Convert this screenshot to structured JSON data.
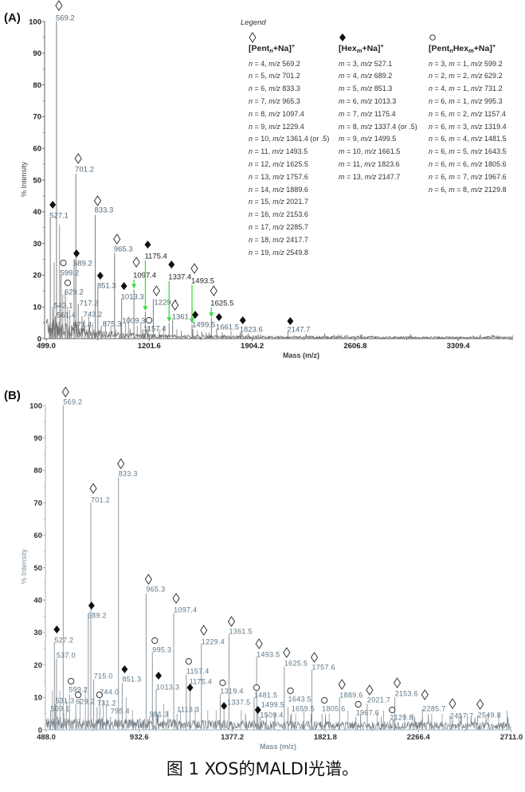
{
  "caption": "图 1 XOS的MALDI光谱。",
  "colors": {
    "arrow": "#3ddf3d",
    "filled_marker": "#111111",
    "open_marker_stroke": "#333333"
  },
  "legend": {
    "title": "Legend",
    "columns": [
      {
        "series": "pent",
        "symbol": "open-diamond",
        "header": [
          "[Pent",
          {
            "sub": "n"
          },
          "+Na]",
          {
            "sup": "+"
          }
        ],
        "rows": [
          "n = 4, m/z 569.2",
          "n = 5, m/z 701.2",
          "n = 6, m/z 833.3",
          "n = 7, m/z 965.3",
          "n = 8, m/z 1097.4",
          "n = 9, m/z 1229.4",
          "n = 10, m/z 1361.4 (or .5)",
          "n = 11, m/z 1493.5",
          "n = 12, m/z 1625.5",
          "n = 13, m/z 1757.6",
          "n = 14, m/z 1889.6",
          "n = 15, m/z 2021.7",
          "n = 16, m/z 2153.6",
          "n = 17, m/z 2285.7",
          "n = 18, m/z 2417.7",
          "n = 19, m/z 2549.8"
        ]
      },
      {
        "series": "hex",
        "symbol": "filled-diamond",
        "header": [
          "[Hex",
          {
            "sub": "m"
          },
          "+Na]",
          {
            "sup": "+"
          }
        ],
        "rows": [
          "m = 3, m/z 527.1",
          "m = 4, m/z 689.2",
          "m = 5, m/z 851.3",
          "m = 6, m/z 1013.3",
          "m = 7, m/z 1175.4",
          "m = 8, m/z 1337.4 (or .5)",
          "m = 9, m/z 1499.5",
          "m = 10, m/z 1661.5",
          "m = 11, m/z 1823.6",
          "m = 13, m/z 2147.7"
        ]
      },
      {
        "series": "penthex",
        "symbol": "open-circle",
        "header": [
          "[Pent",
          {
            "sub": "n"
          },
          "Hex",
          {
            "sub": "m"
          },
          "+Na]",
          {
            "sup": "+"
          }
        ],
        "rows": [
          "n = 3, m = 1, m/z 599.2",
          "n = 2, m = 2, m/z 629.2",
          "n = 4, m = 1, m/z 731.2",
          "n = 6, m = 1, m/z 995.3",
          "n = 6, m = 2, m/z 1157.4",
          "n = 6, m = 3, m/z 1319.4",
          "n = 6, m = 4, m/z 1481.5",
          "n = 6, m = 5, m/z 1643.5",
          "n = 6, m = 6, m/z 1805.6",
          "n = 6, m = 7, m/z 1967.6",
          "n = 6, m = 8, m/z 2129.8"
        ]
      }
    ]
  },
  "chart_data": [
    {
      "panel_label": "(A)",
      "type": "bar",
      "subtype": "mass-spectrum-sticks",
      "title": "",
      "xlabel": "Mass (m/z)",
      "ylabel": "% Intensity",
      "xlim": [
        499.0,
        3678.0
      ],
      "ylim": [
        0,
        100
      ],
      "xticks": [
        499.0,
        1201.6,
        1904.2,
        2606.8,
        3309.4
      ],
      "yticks": [
        0,
        10,
        20,
        30,
        40,
        50,
        60,
        70,
        80,
        90,
        100
      ],
      "grid": false,
      "legend_position": "top-right",
      "series_keys": {
        "pent": "[Pentn+Na]+",
        "hex": "[Hexm+Na]+",
        "penthex": "[PentnHexm+Na]+",
        "other": "unassigned"
      },
      "peaks": [
        {
          "label": "569.2",
          "mz": 569.2,
          "intensity": 100,
          "series": "pent"
        },
        {
          "label": "701.2",
          "mz": 701.2,
          "intensity": 52,
          "series": "pent"
        },
        {
          "label": "833.3",
          "mz": 833.3,
          "intensity": 39,
          "series": "pent"
        },
        {
          "label": "965.3",
          "mz": 965.3,
          "intensity": 27,
          "series": "pent"
        },
        {
          "label": "1097.4",
          "mz": 1097.4,
          "intensity": 15.5,
          "series": "pent",
          "arrow": true
        },
        {
          "label": "1229.4",
          "mz": 1229.4,
          "intensity": 12.5,
          "series": "pent"
        },
        {
          "label": "1361.4",
          "mz": 1361.4,
          "intensity": 6,
          "series": "pent"
        },
        {
          "label": "1493.5",
          "mz": 1493.5,
          "intensity": 4.5,
          "series": "pent",
          "arrow": true
        },
        {
          "label": "1625.5",
          "mz": 1625.5,
          "intensity": 6.5,
          "series": "pent",
          "arrow": true
        },
        {
          "label": "527.1",
          "mz": 527.1,
          "intensity": 38,
          "series": "hex"
        },
        {
          "label": "689.2",
          "mz": 689.2,
          "intensity": 25,
          "series": "hex"
        },
        {
          "label": "851.3",
          "mz": 851.3,
          "intensity": 16,
          "series": "hex"
        },
        {
          "label": "1013.3",
          "mz": 1013.3,
          "intensity": 12.5,
          "series": "hex"
        },
        {
          "label": "1175.4",
          "mz": 1175.4,
          "intensity": 8.5,
          "series": "hex",
          "arrow": true
        },
        {
          "label": "1337.4",
          "mz": 1337.4,
          "intensity": 5,
          "series": "hex",
          "arrow": true
        },
        {
          "label": "1499.5",
          "mz": 1499.5,
          "intensity": 3,
          "series": "hex"
        },
        {
          "label": "1661.5",
          "mz": 1661.5,
          "intensity": 3,
          "series": "hex"
        },
        {
          "label": "1823.6",
          "mz": 1823.6,
          "intensity": 2,
          "series": "hex"
        },
        {
          "label": "2147.7",
          "mz": 2147.7,
          "intensity": 2,
          "series": "hex"
        },
        {
          "label": "599.2",
          "mz": 599.2,
          "intensity": 20,
          "series": "penthex"
        },
        {
          "label": "629.2",
          "mz": 629.2,
          "intensity": 15,
          "series": "penthex"
        },
        {
          "label": "1157.4",
          "mz": 1157.4,
          "intensity": 3,
          "series": "penthex"
        },
        {
          "label": "543.1",
          "mz": 543.1,
          "intensity": 10,
          "series": "other"
        },
        {
          "label": "561.4",
          "mz": 561.4,
          "intensity": 7,
          "series": "other"
        },
        {
          "label": "671.4",
          "mz": 671.4,
          "intensity": 4,
          "series": "other"
        },
        {
          "label": "717.2",
          "mz": 717.2,
          "intensity": 11,
          "series": "other"
        },
        {
          "label": "743.2",
          "mz": 743.2,
          "intensity": 7,
          "series": "other"
        },
        {
          "label": "875.3",
          "mz": 875.3,
          "intensity": 4,
          "series": "other"
        },
        {
          "label": "1009.3",
          "mz": 1009.3,
          "intensity": 5,
          "series": "other"
        }
      ],
      "unlabeled_peaks": [
        [
          553,
          24
        ],
        [
          590,
          36
        ],
        [
          612,
          14
        ],
        [
          645,
          10
        ],
        [
          660,
          9
        ],
        [
          760,
          6
        ],
        [
          790,
          7
        ],
        [
          815,
          5
        ],
        [
          905,
          5
        ],
        [
          940,
          4
        ],
        [
          1040,
          5
        ],
        [
          1060,
          7
        ],
        [
          1120,
          4
        ],
        [
          1145,
          5
        ],
        [
          1195,
          4
        ],
        [
          1270,
          3
        ],
        [
          1300,
          4
        ],
        [
          1390,
          3
        ],
        [
          1420,
          2.5
        ],
        [
          1530,
          2.5
        ],
        [
          1590,
          2
        ],
        [
          1700,
          2
        ],
        [
          1760,
          2.5
        ],
        [
          1960,
          1.5
        ]
      ]
    },
    {
      "panel_label": "(B)",
      "type": "bar",
      "subtype": "mass-spectrum-sticks",
      "title": "",
      "xlabel": "Mass (m/z)",
      "ylabel": "% Intensity",
      "xlim": [
        488.0,
        2711.0
      ],
      "ylim": [
        0,
        100
      ],
      "xticks": [
        488.0,
        932.6,
        1377.2,
        1821.8,
        2266.4,
        2711.0
      ],
      "yticks": [
        0,
        10,
        20,
        30,
        40,
        50,
        60,
        70,
        80,
        90,
        100
      ],
      "grid": false,
      "legend_position": "none",
      "peaks": [
        {
          "label": "569.2",
          "mz": 569.2,
          "intensity": 100,
          "series": "pent"
        },
        {
          "label": "701.2",
          "mz": 701.2,
          "intensity": 70,
          "series": "pent"
        },
        {
          "label": "833.3",
          "mz": 833.3,
          "intensity": 78,
          "series": "pent"
        },
        {
          "label": "965.3",
          "mz": 965.3,
          "intensity": 42,
          "series": "pent"
        },
        {
          "label": "1097.4",
          "mz": 1097.4,
          "intensity": 36,
          "series": "pent"
        },
        {
          "label": "1229.4",
          "mz": 1229.4,
          "intensity": 26.5,
          "series": "pent"
        },
        {
          "label": "1361.5",
          "mz": 1361.5,
          "intensity": 29.5,
          "series": "pent"
        },
        {
          "label": "1493.5",
          "mz": 1493.5,
          "intensity": 22.5,
          "series": "pent"
        },
        {
          "label": "1625.5",
          "mz": 1625.5,
          "intensity": 19.5,
          "series": "pent"
        },
        {
          "label": "1757.6",
          "mz": 1757.6,
          "intensity": 18.5,
          "series": "pent"
        },
        {
          "label": "1889.6",
          "mz": 1889.6,
          "intensity": 10,
          "series": "pent"
        },
        {
          "label": "2021.7",
          "mz": 2021.7,
          "intensity": 8,
          "series": "pent"
        },
        {
          "label": "2153.6",
          "mz": 2153.6,
          "intensity": 10,
          "series": "pent"
        },
        {
          "label": "2285.7",
          "mz": 2285.7,
          "intensity": 6.5,
          "series": "pent"
        },
        {
          "label": "2417.7",
          "mz": 2417.7,
          "intensity": 4.5,
          "series": "pent"
        },
        {
          "label": "2549.8",
          "mz": 2549.8,
          "intensity": 4.5,
          "series": "pent"
        },
        {
          "label": "527.2",
          "mz": 527.2,
          "intensity": 27,
          "series": "hex"
        },
        {
          "label": "689.2",
          "mz": 689.2,
          "intensity": 35,
          "series": "hex"
        },
        {
          "label": "851.3",
          "mz": 851.3,
          "intensity": 14.5,
          "series": "hex"
        },
        {
          "label": "1013.3",
          "mz": 1013.3,
          "intensity": 12.5,
          "series": "hex"
        },
        {
          "label": "1175.4",
          "mz": 1175.4,
          "intensity": 12,
          "series": "hex"
        },
        {
          "label": "1337.5",
          "mz": 1337.5,
          "intensity": 6,
          "series": "hex"
        },
        {
          "label": "1499.5",
          "mz": 1499.5,
          "intensity": 6,
          "series": "hex"
        },
        {
          "label": "599.2",
          "mz": 599.2,
          "intensity": 11,
          "series": "penthex"
        },
        {
          "label": "629.2",
          "mz": 629.2,
          "intensity": 8,
          "series": "penthex"
        },
        {
          "label": "731.2",
          "mz": 731.2,
          "intensity": 7,
          "series": "penthex"
        },
        {
          "label": "995.3",
          "mz": 995.3,
          "intensity": 24,
          "series": "penthex"
        },
        {
          "label": "1157.4",
          "mz": 1157.4,
          "intensity": 17,
          "series": "penthex"
        },
        {
          "label": "1319.4",
          "mz": 1319.4,
          "intensity": 11,
          "series": "penthex"
        },
        {
          "label": "1481.5",
          "mz": 1481.5,
          "intensity": 10,
          "series": "penthex"
        },
        {
          "label": "1643.5",
          "mz": 1643.5,
          "intensity": 7,
          "series": "penthex"
        },
        {
          "label": "1805.6",
          "mz": 1805.6,
          "intensity": 5,
          "series": "penthex"
        },
        {
          "label": "1967.6",
          "mz": 1967.6,
          "intensity": 4,
          "series": "penthex"
        },
        {
          "label": "2129.8",
          "mz": 2129.8,
          "intensity": 3,
          "series": "penthex"
        },
        {
          "label": "537.0",
          "mz": 537.0,
          "intensity": 22,
          "series": "other"
        },
        {
          "label": "531.3",
          "mz": 531.3,
          "intensity": 8,
          "series": "other"
        },
        {
          "label": "509.1",
          "mz": 509.1,
          "intensity": 6,
          "series": "other"
        },
        {
          "label": "715.0",
          "mz": 715.0,
          "intensity": 15.5,
          "series": "other"
        },
        {
          "label": "744.0",
          "mz": 744.0,
          "intensity": 10,
          "series": "other"
        },
        {
          "label": "795.4",
          "mz": 795.4,
          "intensity": 4,
          "series": "other"
        },
        {
          "label": "981.3",
          "mz": 981.3,
          "intensity": 4,
          "series": "other"
        },
        {
          "label": "1113.3",
          "mz": 1113.3,
          "intensity": 5,
          "series": "other"
        },
        {
          "label": "1509.4",
          "mz": 1509.4,
          "intensity": 4,
          "series": "other"
        },
        {
          "label": "1659.5",
          "mz": 1659.5,
          "intensity": 5,
          "series": "other"
        }
      ],
      "unlabeled_peaks": [
        [
          518,
          12
        ],
        [
          553,
          12
        ],
        [
          585,
          9
        ],
        [
          650,
          10
        ],
        [
          675,
          13
        ],
        [
          760,
          9
        ],
        [
          775,
          8
        ],
        [
          870,
          10
        ],
        [
          900,
          6
        ],
        [
          1050,
          8
        ],
        [
          1070,
          6
        ],
        [
          1130,
          6
        ],
        [
          1200,
          7
        ],
        [
          1260,
          6
        ],
        [
          1300,
          6
        ],
        [
          1420,
          6
        ],
        [
          1440,
          5
        ],
        [
          1540,
          5
        ],
        [
          1580,
          5
        ],
        [
          1680,
          5
        ],
        [
          1720,
          6
        ],
        [
          1840,
          5
        ],
        [
          1930,
          6
        ],
        [
          1990,
          5
        ],
        [
          2070,
          5
        ],
        [
          2100,
          6
        ],
        [
          2200,
          5
        ],
        [
          2240,
          5
        ],
        [
          2330,
          5
        ],
        [
          2380,
          5
        ],
        [
          2460,
          5
        ],
        [
          2500,
          5
        ],
        [
          2600,
          5
        ],
        [
          2650,
          5
        ],
        [
          2690,
          6
        ]
      ]
    }
  ]
}
